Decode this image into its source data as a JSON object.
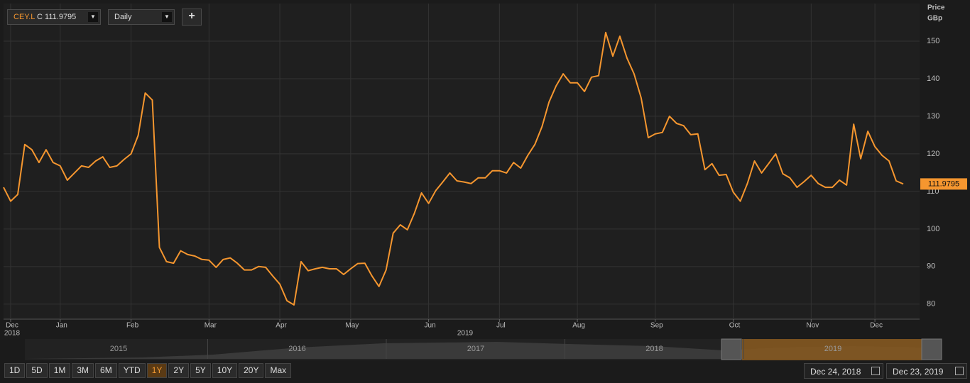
{
  "toolbar": {
    "symbol": "CEY.L",
    "close_prefix": "C",
    "interval": "Daily",
    "add": "+"
  },
  "chart_data": {
    "type": "line",
    "y_axis_label": [
      "Price",
      "GBp"
    ],
    "categories": [
      null,
      "Dec",
      null,
      null,
      null,
      null,
      null,
      null,
      "Jan",
      null,
      null,
      null,
      null,
      null,
      null,
      null,
      null,
      null,
      "Feb",
      null,
      null,
      null,
      null,
      null,
      null,
      null,
      null,
      null,
      null,
      "Mar",
      null,
      null,
      null,
      null,
      null,
      null,
      null,
      null,
      null,
      "Apr",
      null,
      null,
      null,
      null,
      null,
      null,
      null,
      null,
      null,
      "May",
      null,
      null,
      null,
      null,
      null,
      null,
      null,
      null,
      null,
      null,
      "Jun",
      null,
      null,
      null,
      null,
      null,
      null,
      null,
      null,
      null,
      "Jul",
      null,
      null,
      null,
      null,
      null,
      null,
      null,
      null,
      null,
      null,
      "Aug",
      null,
      null,
      null,
      null,
      null,
      null,
      null,
      null,
      null,
      null,
      "Sep",
      null,
      null,
      null,
      null,
      null,
      null,
      null,
      null,
      null,
      null,
      "Oct",
      null,
      null,
      null,
      null,
      null,
      null,
      null,
      null,
      null,
      null,
      "Nov",
      null,
      null,
      null,
      null,
      null,
      null,
      null,
      null,
      "Dec",
      null,
      null,
      null,
      null
    ],
    "x_year_labels": [
      "2018",
      "2019"
    ],
    "values": [
      111.1,
      107.4,
      109.2,
      122.5,
      121.1,
      117.7,
      121.1,
      117.7,
      116.8,
      113.0,
      114.9,
      116.8,
      116.4,
      118.1,
      119.2,
      116.4,
      116.8,
      118.5,
      120.0,
      124.9,
      136.2,
      134.3,
      95.1,
      91.3,
      90.9,
      94.2,
      93.2,
      92.8,
      91.9,
      91.7,
      89.8,
      91.9,
      92.3,
      90.9,
      89.1,
      89.1,
      90.0,
      89.8,
      87.5,
      85.3,
      80.9,
      79.8,
      91.3,
      88.9,
      89.4,
      89.8,
      89.4,
      89.4,
      87.9,
      89.4,
      90.8,
      90.9,
      87.5,
      84.7,
      89.1,
      98.9,
      101.1,
      99.8,
      104.2,
      109.6,
      106.8,
      110.2,
      112.5,
      114.9,
      112.8,
      112.5,
      112.1,
      113.6,
      113.6,
      115.5,
      115.5,
      114.9,
      117.7,
      116.2,
      119.6,
      122.5,
      127.2,
      133.8,
      138.1,
      141.3,
      138.9,
      138.9,
      136.6,
      140.4,
      140.8,
      152.3,
      146.0,
      151.3,
      145.5,
      141.3,
      134.9,
      124.3,
      125.3,
      125.7,
      130.0,
      128.1,
      127.5,
      125.1,
      125.3,
      115.8,
      117.4,
      114.3,
      114.5,
      109.8,
      107.4,
      112.1,
      118.1,
      114.9,
      117.4,
      120.0,
      114.7,
      113.6,
      111.1,
      112.6,
      114.3,
      112.1,
      111.1,
      111.1,
      113.0,
      111.7,
      127.9,
      118.7,
      126.0,
      121.9,
      119.6,
      118.1,
      112.8,
      111.9795
    ],
    "last_value": 111.9795,
    "color": "#f5962f",
    "ylim": [
      76,
      160
    ],
    "yticks": [
      80,
      90,
      100,
      110,
      120,
      130,
      140,
      150
    ],
    "grid": true
  },
  "navigator": {
    "years": [
      "2015",
      "2016",
      "2017",
      "2018",
      "2019"
    ]
  },
  "range_buttons": {
    "items": [
      "1D",
      "5D",
      "1M",
      "3M",
      "6M",
      "YTD",
      "1Y",
      "2Y",
      "5Y",
      "10Y",
      "20Y",
      "Max"
    ],
    "active": "1Y"
  },
  "date_range": {
    "from": "Dec 24, 2018",
    "to": "Dec 23, 2019"
  }
}
